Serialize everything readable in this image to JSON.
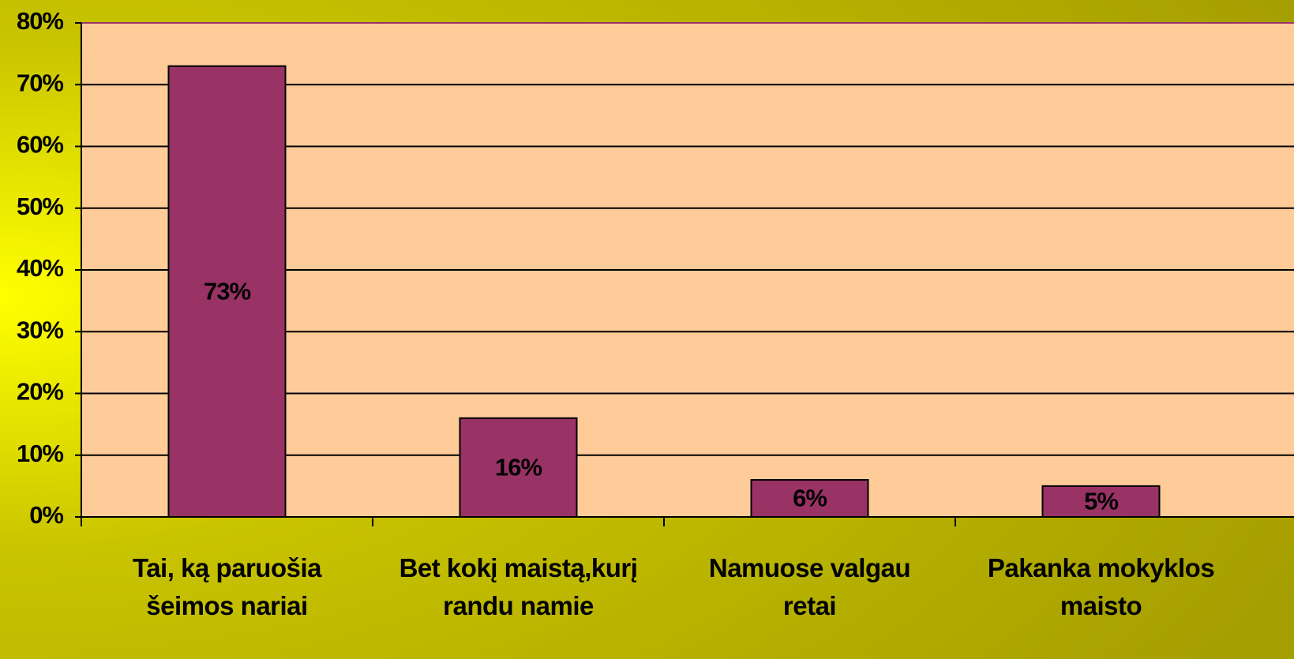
{
  "chart_data": {
    "type": "bar",
    "categories": [
      "Tai, ką paruošia\nšeimos nariai",
      "Bet kokį maistą,kurį\nrandu namie",
      "Namuose valgau\nretai",
      "Pakanka mokyklos\nmaisto"
    ],
    "values": [
      73,
      16,
      6,
      5
    ],
    "value_labels": [
      "73%",
      "16%",
      "6%",
      "5%"
    ],
    "color": "#993366",
    "ylim": [
      0,
      80
    ],
    "yticks": [
      {
        "value": 0,
        "label": "0%"
      },
      {
        "value": 10,
        "label": "10%"
      },
      {
        "value": 20,
        "label": "20%"
      },
      {
        "value": 30,
        "label": "30%"
      },
      {
        "value": 40,
        "label": "40%"
      },
      {
        "value": 50,
        "label": "50%"
      },
      {
        "value": 60,
        "label": "60%"
      },
      {
        "value": 70,
        "label": "70%"
      },
      {
        "value": 80,
        "label": "80%"
      }
    ],
    "grid": true
  }
}
